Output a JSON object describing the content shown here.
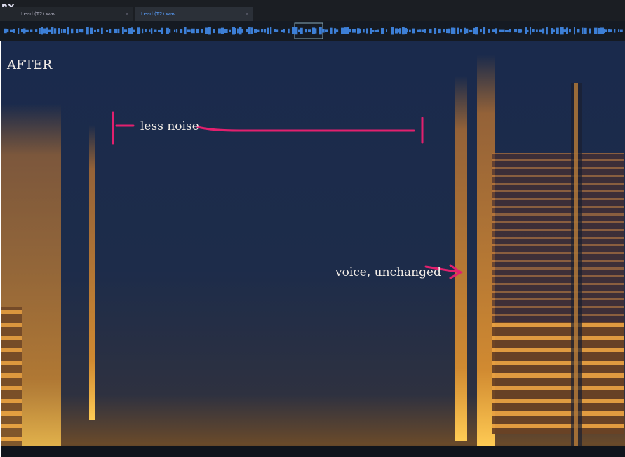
{
  "app": {
    "logo": "RX",
    "tabs": [
      "Lead (T2).wav",
      "Lead (T2).wav"
    ]
  },
  "spectrogram": {
    "label": "AFTER",
    "annotations": [
      "less noise",
      "voice, unchanged"
    ]
  }
}
